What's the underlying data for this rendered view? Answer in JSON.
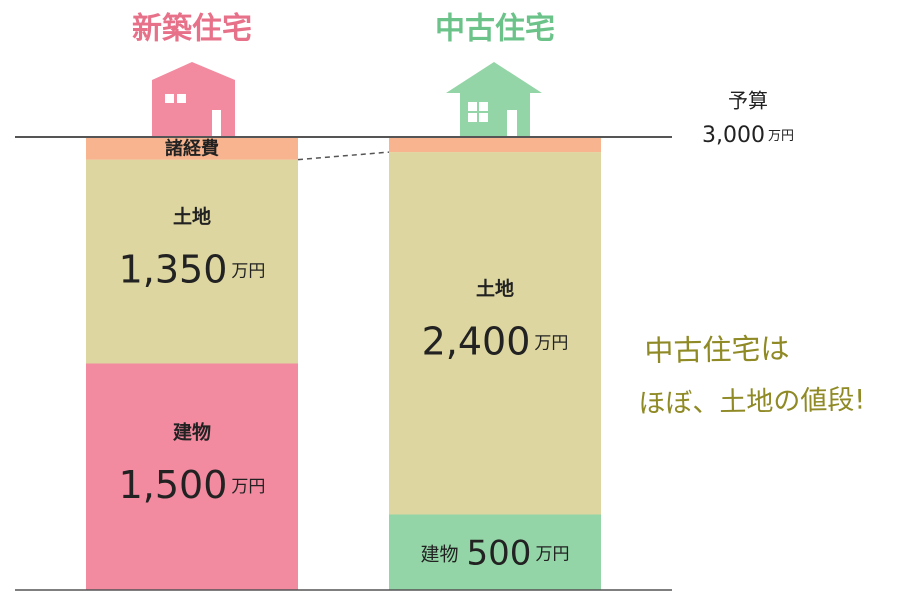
{
  "chart_data": {
    "type": "stacked_bar",
    "categories": [
      "新築住宅",
      "中古住宅"
    ],
    "category_colors": [
      "#e8718a",
      "#6bc38a"
    ],
    "unit": "万円",
    "series": [
      {
        "name": "建物",
        "color": "#f28aa0",
        "colors": [
          "#f28aa0",
          "#93d5a6"
        ],
        "values": [
          1500,
          500
        ],
        "value_labels": [
          "1,500",
          "500"
        ]
      },
      {
        "name": "土地",
        "color": "#ddd6a0",
        "values": [
          1350,
          2400
        ],
        "value_labels": [
          "1,350",
          "2,400"
        ]
      },
      {
        "name": "諸経費",
        "color": "#f8b48e",
        "values": [
          150,
          100
        ]
      }
    ],
    "ylim": [
      0,
      3000
    ],
    "budget": {
      "label": "予算",
      "value": 3000,
      "value_label": "3,000"
    },
    "annotation": [
      "中古住宅は",
      "ほぼ、土地の値段!"
    ],
    "annotation_color": "#8f8a25"
  }
}
